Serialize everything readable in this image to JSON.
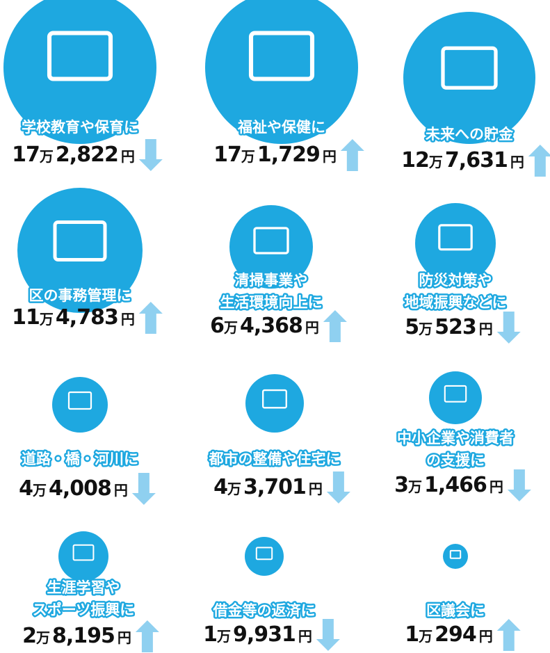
{
  "units": {
    "man": "万",
    "yen": "円"
  },
  "items": [
    {
      "label": [
        "学校教育や保育に"
      ],
      "man": "17",
      "rest": "2,822",
      "trend": "down"
    },
    {
      "label": [
        "福祉や保健に"
      ],
      "man": "17",
      "rest": "1,729",
      "trend": "up"
    },
    {
      "label": [
        "未来への貯金"
      ],
      "man": "12",
      "rest": "7,631",
      "trend": "up"
    },
    {
      "label": [
        "区の事務管理に"
      ],
      "man": "11",
      "rest": "4,783",
      "trend": "up"
    },
    {
      "label": [
        "清掃事業や",
        "生活環境向上に"
      ],
      "man": "6",
      "rest": "4,368",
      "trend": "up"
    },
    {
      "label": [
        "防災対策や",
        "地域振興などに"
      ],
      "man": "5",
      "rest": "523",
      "trend": "down"
    },
    {
      "label": [
        "道路・橋・河川に"
      ],
      "man": "4",
      "rest": "4,008",
      "trend": "down"
    },
    {
      "label": [
        "都市の整備や住宅に"
      ],
      "man": "4",
      "rest": "3,701",
      "trend": "down"
    },
    {
      "label": [
        "中小企業や消費者",
        "の支援に"
      ],
      "man": "3",
      "rest": "1,466",
      "trend": "down"
    },
    {
      "label": [
        "生涯学習や",
        "スポーツ振興に"
      ],
      "man": "2",
      "rest": "8,195",
      "trend": "up"
    },
    {
      "label": [
        "借金等の返済に"
      ],
      "man": "1",
      "rest": "9,931",
      "trend": "down"
    },
    {
      "label": [
        "区議会に"
      ],
      "man": "1",
      "rest": "294",
      "trend": "up"
    }
  ]
}
